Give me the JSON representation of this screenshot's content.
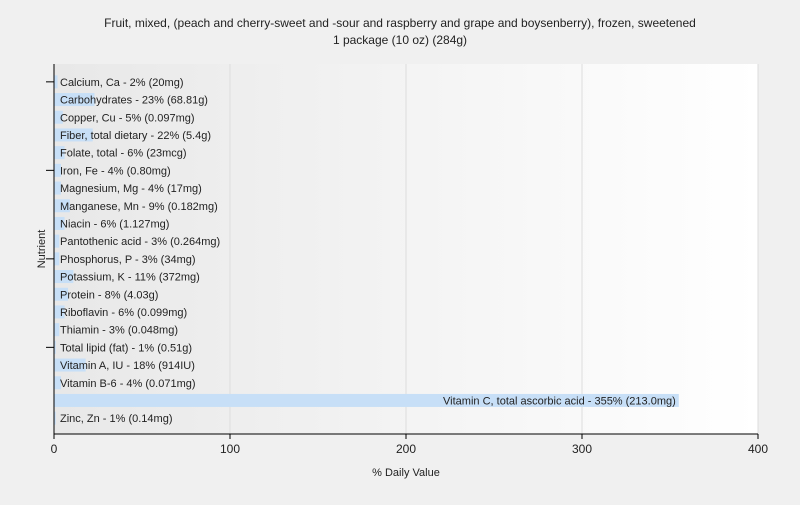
{
  "chart_data": {
    "type": "bar",
    "orientation": "horizontal",
    "title": "Fruit, mixed, (peach and cherry-sweet and -sour and raspberry and grape and boysenberry), frozen, sweetened",
    "subtitle": "1 package (10 oz) (284g)",
    "xlabel": "% Daily Value",
    "ylabel": "Nutrient",
    "xlim": [
      0,
      400
    ],
    "xticks": [
      0,
      100,
      200,
      300,
      400
    ],
    "grid": true,
    "bar_color": "#c7dff7",
    "categories": [
      "Calcium, Ca",
      "Carbohydrates",
      "Copper, Cu",
      "Fiber, total dietary",
      "Folate, total",
      "Iron, Fe",
      "Magnesium, Mg",
      "Manganese, Mn",
      "Niacin",
      "Pantothenic acid",
      "Phosphorus, P",
      "Potassium, K",
      "Protein",
      "Riboflavin",
      "Thiamin",
      "Total lipid (fat)",
      "Vitamin A, IU",
      "Vitamin B-6",
      "Vitamin C, total ascorbic acid",
      "Zinc, Zn"
    ],
    "values": [
      2,
      23,
      5,
      22,
      6,
      4,
      4,
      9,
      6,
      3,
      3,
      11,
      8,
      6,
      3,
      1,
      18,
      4,
      355,
      1
    ],
    "labels": [
      "Calcium, Ca - 2% (20mg)",
      "Carbohydrates - 23% (68.81g)",
      "Copper, Cu - 5% (0.097mg)",
      "Fiber, total dietary - 22% (5.4g)",
      "Folate, total - 6% (23mcg)",
      "Iron, Fe - 4% (0.80mg)",
      "Magnesium, Mg - 4% (17mg)",
      "Manganese, Mn - 9% (0.182mg)",
      "Niacin - 6% (1.127mg)",
      "Pantothenic acid - 3% (0.264mg)",
      "Phosphorus, P - 3% (34mg)",
      "Potassium, K - 11% (372mg)",
      "Protein - 8% (4.03g)",
      "Riboflavin - 6% (0.099mg)",
      "Thiamin - 3% (0.048mg)",
      "Total lipid (fat) - 1% (0.51g)",
      "Vitamin A, IU - 18% (914IU)",
      "Vitamin B-6 - 4% (0.071mg)",
      "Vitamin C, total ascorbic acid - 355% (213.0mg)",
      "Zinc, Zn - 1% (0.14mg)"
    ]
  }
}
